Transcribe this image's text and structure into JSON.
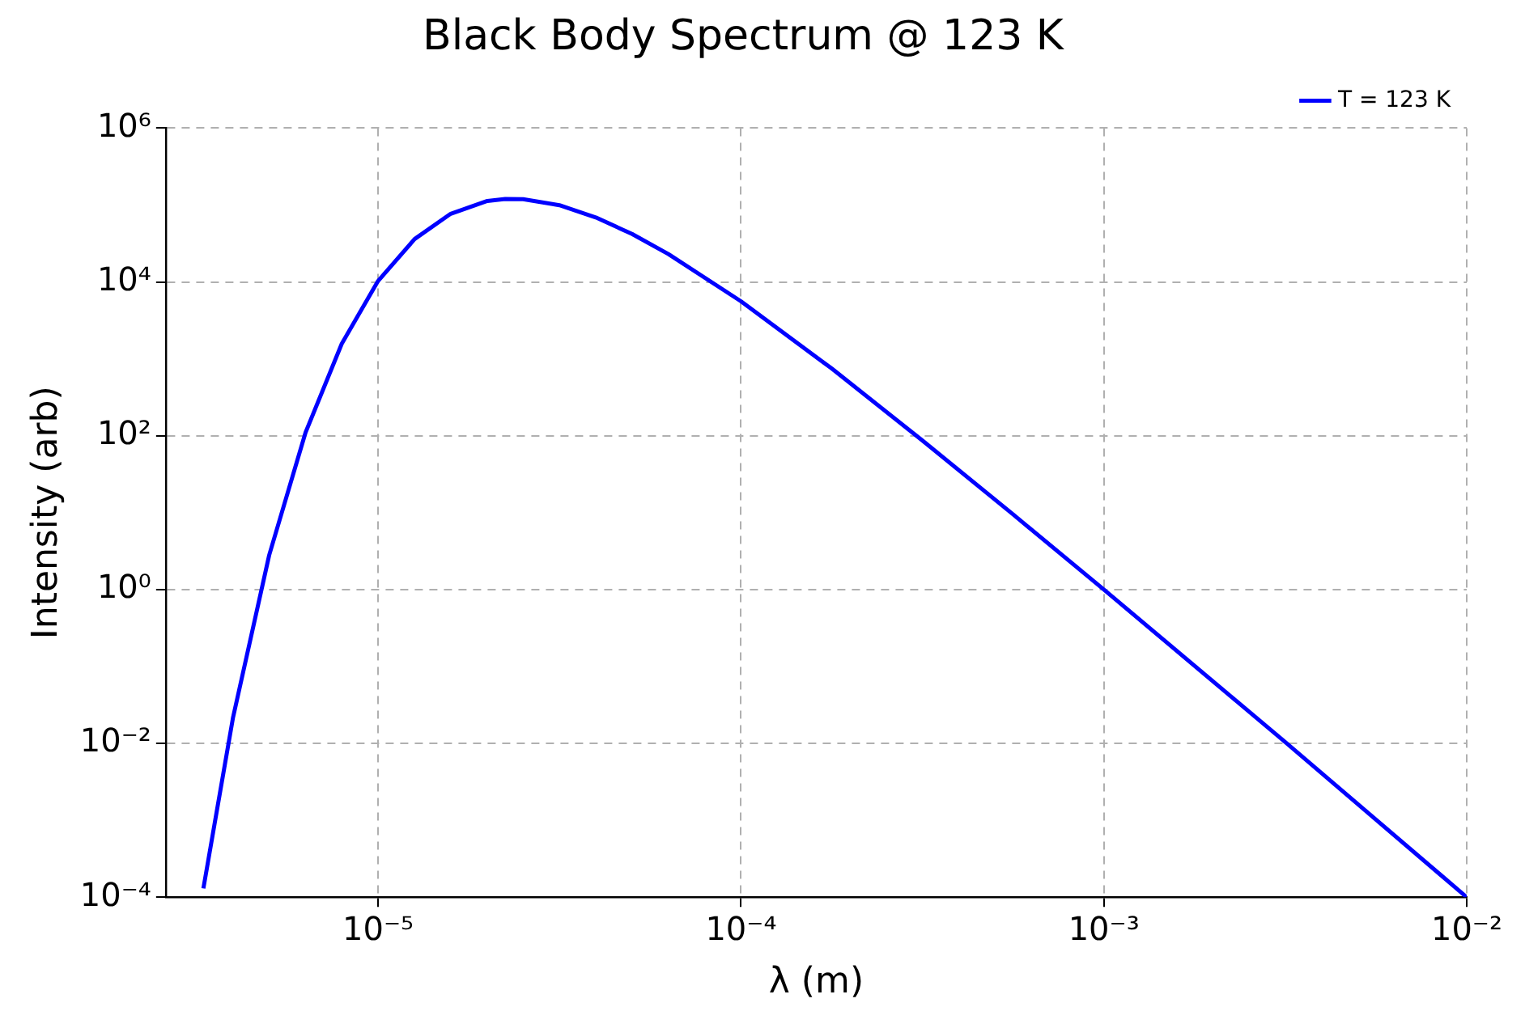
{
  "chart_data": {
    "type": "line",
    "title": "Black Body Spectrum @ 123 K",
    "xlabel": "λ (m)",
    "ylabel": "Intensity (arb)",
    "x": [
      3.3e-06,
      3.98e-06,
      5.01e-06,
      6.31e-06,
      7.94e-06,
      1e-05,
      1.26e-05,
      1.585e-05,
      2e-05,
      2.24e-05,
      2.51e-05,
      3.16e-05,
      3.98e-05,
      5.01e-05,
      6.31e-05,
      0.0001,
      0.0001778,
      0.000316,
      0.000562,
      0.001,
      0.00316,
      0.01
    ],
    "series": [
      {
        "name": "T = 123 K",
        "color": "#0000ff",
        "values": [
          0.00013,
          0.0213,
          2.8,
          110,
          1570,
          10300.0,
          36000.0,
          77000.0,
          113000.0,
          120000.0,
          119000.0,
          99500.0,
          69000.0,
          42000.0,
          23000.0,
          5600.0,
          749,
          87,
          9.5,
          1,
          0.0104,
          0.0001
        ]
      }
    ],
    "log": "xy",
    "xlim": [
      2.6e-06,
      0.01
    ],
    "ylim": [
      0.0001,
      1000000.0
    ],
    "xticks": [
      {
        "value": 1e-05,
        "label": "10⁻⁵"
      },
      {
        "value": 0.0001,
        "label": "10⁻⁴"
      },
      {
        "value": 0.001,
        "label": "10⁻³"
      },
      {
        "value": 0.01,
        "label": "10⁻²"
      }
    ],
    "yticks": [
      {
        "value": 0.0001,
        "label": "10⁻⁴"
      },
      {
        "value": 0.01,
        "label": "10⁻²"
      },
      {
        "value": 1,
        "label": "10⁰"
      },
      {
        "value": 100,
        "label": "10²"
      },
      {
        "value": 10000.0,
        "label": "10⁴"
      },
      {
        "value": 1000000.0,
        "label": "10⁶"
      }
    ],
    "grid": true,
    "legend": "top right",
    "line_style": "solid",
    "marker": "none"
  }
}
